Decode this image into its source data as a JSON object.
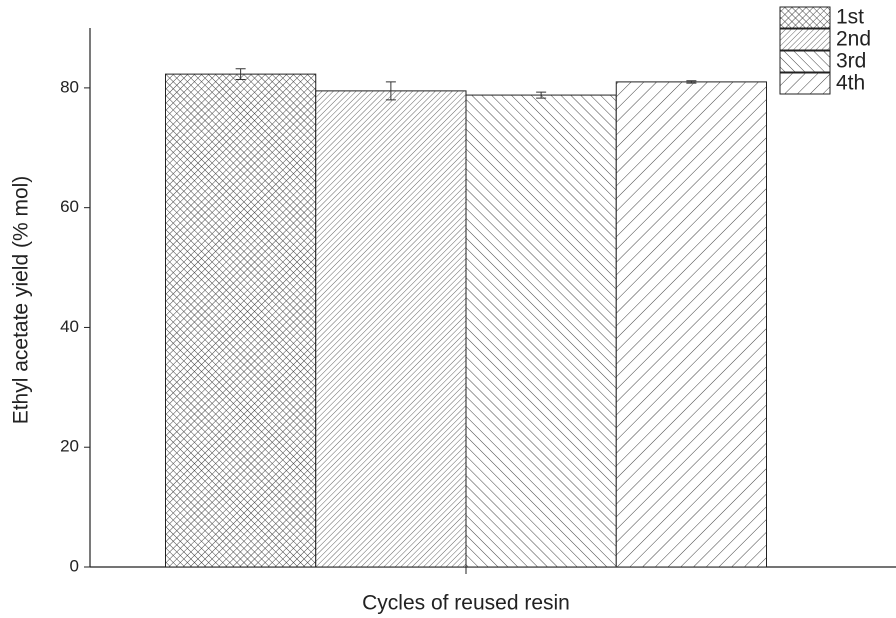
{
  "chart_data": {
    "type": "bar",
    "y_label": "Ethyl acetate yield (% mol)",
    "x_label": "Cycles of reused resin",
    "categories": [
      null
    ],
    "series": [
      {
        "name": "1st",
        "hatch": "cross",
        "values": [
          82.3
        ],
        "errors": [
          0.9
        ]
      },
      {
        "name": "2nd",
        "hatch": "fine-forward",
        "values": [
          79.5
        ],
        "errors": [
          1.5
        ]
      },
      {
        "name": "3rd",
        "hatch": "back",
        "values": [
          78.8
        ],
        "errors": [
          0.5
        ]
      },
      {
        "name": "4th",
        "hatch": "forward",
        "values": [
          81.0
        ],
        "errors": [
          0.2
        ]
      }
    ],
    "ylim": [
      0,
      90
    ],
    "yticks": [
      0,
      20,
      40,
      60,
      80
    ]
  }
}
